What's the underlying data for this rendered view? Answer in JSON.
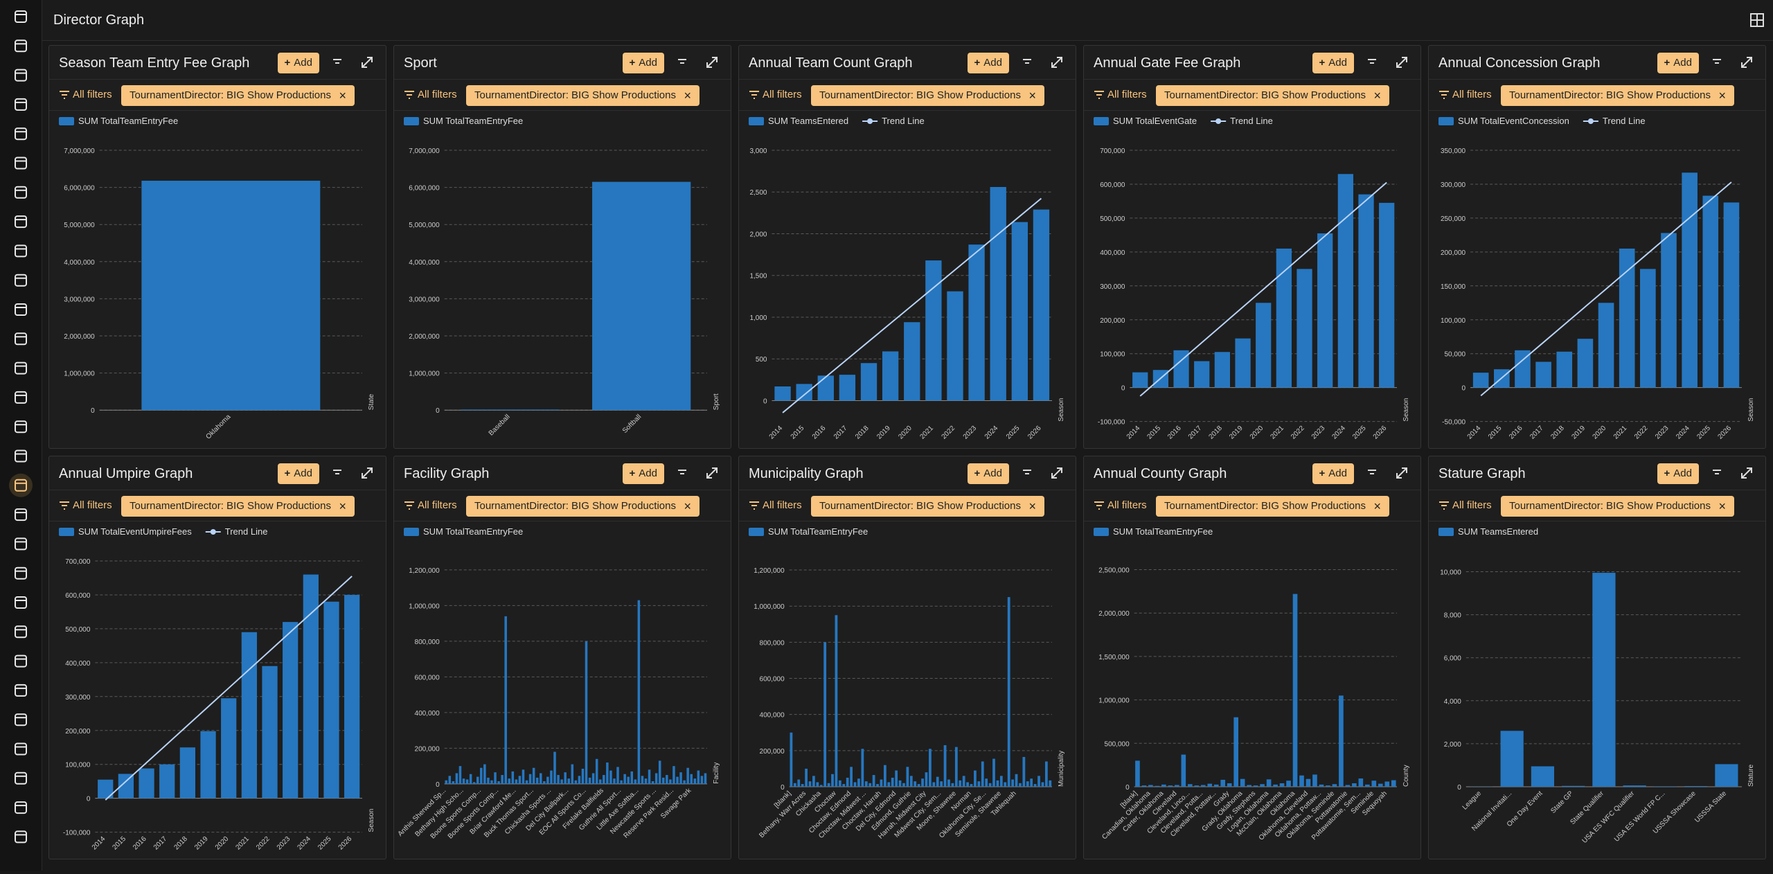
{
  "header": {
    "title": "Director Graph"
  },
  "ui": {
    "add": "Add",
    "all_filters": "All filters",
    "filter_chip": "TournamentDirector: BIG Show Productions"
  },
  "chart_data": [
    {
      "type": "bar",
      "title": "Season Team Entry Fee Graph",
      "x_label": "State",
      "categories": [
        "Oklahoma"
      ],
      "series": [
        {
          "name": "SUM TotalTeamEntryFee",
          "color": "#2677c0",
          "values": [
            6180000
          ]
        }
      ],
      "ylim": [
        0,
        7000000
      ],
      "yticks": [
        0,
        {
          "value": 1000000,
          "label": "1,000,000"
        },
        {
          "value": 2000000,
          "label": "2,000,000"
        },
        {
          "value": 3000000,
          "label": "3,000,000"
        },
        {
          "value": 4000000,
          "label": "4,000,000"
        },
        {
          "value": 5000000,
          "label": "5,000,000"
        },
        {
          "value": 6000000,
          "label": "6,000,000"
        },
        {
          "value": 7000000,
          "label": "7,000,000"
        }
      ],
      "grid": true
    },
    {
      "type": "bar",
      "title": "Sport",
      "x_label": "Sport",
      "categories": [
        "Baseball",
        "Softball"
      ],
      "series": [
        {
          "name": "SUM TotalTeamEntryFee",
          "color": "#2677c0",
          "values": [
            15000,
            6150000
          ]
        }
      ],
      "ylim": [
        0,
        7000000
      ],
      "yticks": [
        0,
        {
          "value": 1000000,
          "label": "1,000,000"
        },
        {
          "value": 2000000,
          "label": "2,000,000"
        },
        {
          "value": 3000000,
          "label": "3,000,000"
        },
        {
          "value": 4000000,
          "label": "4,000,000"
        },
        {
          "value": 5000000,
          "label": "5,000,000"
        },
        {
          "value": 6000000,
          "label": "6,000,000"
        },
        {
          "value": 7000000,
          "label": "7,000,000"
        }
      ],
      "grid": true
    },
    {
      "type": "bar",
      "title": "Annual Team Count Graph",
      "x_label": "Season",
      "categories": [
        "2014",
        "2015",
        "2016",
        "2017",
        "2018",
        "2019",
        "2020",
        "2021",
        "2022",
        "2023",
        "2024",
        "2025",
        "2026"
      ],
      "series": [
        {
          "name": "SUM TeamsEntered",
          "color": "#2677c0",
          "values": [
            170,
            200,
            300,
            310,
            450,
            590,
            940,
            1680,
            1310,
            1870,
            2560,
            2140,
            2290
          ]
        },
        {
          "name": "Trend Line",
          "type": "line",
          "color": "#b9d3f7",
          "values": [
            -145,
            69,
            283,
            497,
            711,
            925,
            1139,
            1353,
            1567,
            1781,
            1995,
            2209,
            2423
          ]
        }
      ],
      "ylim": [
        -250,
        3000
      ],
      "yticks": [
        0,
        500,
        {
          "value": 1000,
          "label": "1,000"
        },
        {
          "value": 1500,
          "label": "1,500"
        },
        {
          "value": 2000,
          "label": "2,000"
        },
        {
          "value": 2500,
          "label": "2,500"
        },
        {
          "value": 3000,
          "label": "3,000"
        }
      ],
      "grid": true
    },
    {
      "type": "bar",
      "title": "Annual Gate Fee Graph",
      "x_label": "Season",
      "categories": [
        "2014",
        "2015",
        "2016",
        "2017",
        "2018",
        "2019",
        "2020",
        "2021",
        "2022",
        "2023",
        "2024",
        "2025",
        "2026"
      ],
      "series": [
        {
          "name": "SUM TotalEventGate",
          "color": "#2677c0",
          "values": [
            45000,
            52000,
            110000,
            78000,
            105000,
            145000,
            250000,
            410000,
            350000,
            455000,
            630000,
            570000,
            545000
          ]
        },
        {
          "name": "Trend Line",
          "type": "line",
          "color": "#b9d3f7",
          "values": [
            -25000,
            27500,
            80000,
            132500,
            185000,
            237500,
            290000,
            342500,
            395000,
            447500,
            500000,
            552500,
            605000
          ]
        }
      ],
      "ylim": [
        -100000,
        700000
      ],
      "yticks": [
        {
          "value": -100000,
          "label": "-100,000"
        },
        0,
        {
          "value": 100000,
          "label": "100,000"
        },
        {
          "value": 200000,
          "label": "200,000"
        },
        {
          "value": 300000,
          "label": "300,000"
        },
        {
          "value": 400000,
          "label": "400,000"
        },
        {
          "value": 500000,
          "label": "500,000"
        },
        {
          "value": 600000,
          "label": "600,000"
        },
        {
          "value": 700000,
          "label": "700,000"
        }
      ],
      "grid": true
    },
    {
      "type": "bar",
      "title": "Annual Concession Graph",
      "x_label": "Season",
      "categories": [
        "2014",
        "2015",
        "2016",
        "2017",
        "2018",
        "2019",
        "2020",
        "2021",
        "2022",
        "2023",
        "2024",
        "2025",
        "2026"
      ],
      "series": [
        {
          "name": "SUM TotalEventConcession",
          "color": "#2677c0",
          "values": [
            22000,
            27000,
            55000,
            38000,
            53000,
            72000,
            125000,
            205000,
            175000,
            228000,
            317000,
            283000,
            273000
          ]
        },
        {
          "name": "Trend Line",
          "type": "line",
          "color": "#b9d3f7",
          "values": [
            -12000,
            14250,
            40500,
            66750,
            93000,
            119250,
            145500,
            171750,
            198000,
            224250,
            250500,
            276750,
            303000
          ]
        }
      ],
      "ylim": [
        -50000,
        350000
      ],
      "yticks": [
        {
          "value": -50000,
          "label": "-50,000"
        },
        0,
        {
          "value": 50000,
          "label": "50,000"
        },
        {
          "value": 100000,
          "label": "100,000"
        },
        {
          "value": 150000,
          "label": "150,000"
        },
        {
          "value": 200000,
          "label": "200,000"
        },
        {
          "value": 250000,
          "label": "250,000"
        },
        {
          "value": 300000,
          "label": "300,000"
        },
        {
          "value": 350000,
          "label": "350,000"
        }
      ],
      "grid": true
    },
    {
      "type": "bar",
      "title": "Annual Umpire Graph",
      "x_label": "Season",
      "categories": [
        "2014",
        "2015",
        "2016",
        "2017",
        "2018",
        "2019",
        "2020",
        "2021",
        "2022",
        "2023",
        "2024",
        "2025",
        "2026"
      ],
      "series": [
        {
          "name": "SUM TotalEventUmpireFees",
          "color": "#2677c0",
          "values": [
            55000,
            72000,
            88000,
            100000,
            150000,
            198000,
            295000,
            490000,
            390000,
            520000,
            660000,
            580000,
            600000
          ]
        },
        {
          "name": "Trend Line",
          "type": "line",
          "color": "#b9d3f7",
          "values": [
            -5000,
            50000,
            105000,
            160000,
            215000,
            270000,
            325000,
            380000,
            435000,
            490000,
            545000,
            600000,
            655000
          ]
        }
      ],
      "ylim": [
        -100000,
        700000
      ],
      "yticks": [
        {
          "value": -100000,
          "label": "-100,000"
        },
        0,
        {
          "value": 100000,
          "label": "100,000"
        },
        {
          "value": 200000,
          "label": "200,000"
        },
        {
          "value": 300000,
          "label": "300,000"
        },
        {
          "value": 400000,
          "label": "400,000"
        },
        {
          "value": 500000,
          "label": "500,000"
        },
        {
          "value": 600000,
          "label": "600,000"
        },
        {
          "value": 700000,
          "label": "700,000"
        }
      ],
      "grid": true
    },
    {
      "type": "bar",
      "title": "Facility Graph",
      "x_label": "Facility",
      "categories": [
        "Anthis Sherwod Sp...",
        null,
        null,
        null,
        null,
        "Bethany High Scho...",
        null,
        null,
        null,
        null,
        "Boone Sports Comp...",
        null,
        null,
        null,
        null,
        "Boone Sports Comp...",
        null,
        null,
        null,
        null,
        "Briar Crawford Me...",
        null,
        null,
        null,
        null,
        "Buck Thomas Sport...",
        null,
        null,
        null,
        null,
        "Chickasha Sports ...",
        null,
        null,
        null,
        null,
        "Del City Ballpark...",
        null,
        null,
        null,
        null,
        "EOC All Sports Co...",
        null,
        null,
        null,
        null,
        "Firelake Ballfields",
        null,
        null,
        null,
        null,
        "Guthrie All Sport...",
        null,
        null,
        null,
        null,
        "Little Axe Softba...",
        null,
        null,
        null,
        null,
        "Newcastle Sports ...",
        null,
        null,
        null,
        null,
        "Reserve Park Resid...",
        null,
        null,
        null,
        null,
        "Savage Park",
        null,
        null,
        null,
        null
      ],
      "series": [
        {
          "name": "SUM TotalTeamEntryFee",
          "color": "#2677c0",
          "values": [
            20000,
            45000,
            15000,
            60000,
            100000,
            30000,
            25000,
            55000,
            10000,
            40000,
            90000,
            110000,
            35000,
            20000,
            65000,
            15000,
            50000,
            940000,
            30000,
            70000,
            25000,
            45000,
            80000,
            20000,
            55000,
            90000,
            35000,
            60000,
            15000,
            40000,
            75000,
            180000,
            50000,
            25000,
            65000,
            30000,
            110000,
            20000,
            45000,
            85000,
            800000,
            35000,
            60000,
            140000,
            25000,
            50000,
            120000,
            75000,
            30000,
            95000,
            20000,
            55000,
            40000,
            70000,
            25000,
            1030000,
            45000,
            30000,
            80000,
            15000,
            60000,
            130000,
            35000,
            50000,
            25000,
            100000,
            40000,
            65000,
            20000,
            90000,
            55000,
            30000,
            75000,
            45000,
            60000
          ]
        }
      ],
      "ylim": [
        0,
        1250000
      ],
      "yticks": [
        0,
        {
          "value": 200000,
          "label": "200,000"
        },
        {
          "value": 400000,
          "label": "400,000"
        },
        {
          "value": 600000,
          "label": "600,000"
        },
        {
          "value": 800000,
          "label": "800,000"
        },
        {
          "value": 1000000,
          "label": "1,000,000"
        },
        {
          "value": 1200000,
          "label": "1,200,000"
        }
      ],
      "grid": true
    },
    {
      "type": "bar",
      "title": "Municipality Graph",
      "x_label": "Municipality",
      "categories": [
        "[blank]",
        null,
        null,
        null,
        "Bethany, Warr Acres",
        null,
        null,
        null,
        "Chickasha",
        null,
        null,
        null,
        "Choctaw",
        null,
        null,
        null,
        "Choctaw, Edmond",
        null,
        null,
        null,
        "Choctaw, Midwest ...",
        null,
        null,
        null,
        "Choctaw, Harrah",
        null,
        null,
        null,
        "Del City, Edmond",
        null,
        null,
        null,
        "Edmond, Guthrie",
        null,
        null,
        null,
        "Harrah, Midwest City",
        null,
        null,
        null,
        "Midwest City, Sem...",
        null,
        null,
        null,
        "Moore, Shawnee",
        null,
        null,
        null,
        "Norman",
        null,
        null,
        null,
        "Oklahoma City, Se...",
        null,
        null,
        null,
        "Seminole, Shawnee",
        null,
        null,
        null,
        "Tahlequah",
        null,
        null,
        null,
        null,
        null,
        null,
        null,
        null,
        null
      ],
      "series": [
        {
          "name": "SUM TotalTeamEntryFee",
          "color": "#2677c0",
          "values": [
            300000,
            20000,
            40000,
            15000,
            100000,
            30000,
            60000,
            25000,
            10000,
            800000,
            20000,
            70000,
            950000,
            35000,
            15000,
            50000,
            110000,
            25000,
            45000,
            210000,
            30000,
            20000,
            65000,
            15000,
            40000,
            120000,
            25000,
            50000,
            90000,
            35000,
            20000,
            110000,
            60000,
            30000,
            15000,
            45000,
            80000,
            210000,
            25000,
            55000,
            30000,
            230000,
            40000,
            20000,
            220000,
            35000,
            60000,
            25000,
            15000,
            90000,
            30000,
            140000,
            45000,
            20000,
            155000,
            35000,
            60000,
            25000,
            1050000,
            40000,
            70000,
            20000,
            165000,
            30000,
            45000,
            15000,
            60000,
            25000,
            140000,
            35000
          ]
        }
      ],
      "ylim": [
        0,
        1250000
      ],
      "yticks": [
        0,
        {
          "value": 200000,
          "label": "200,000"
        },
        {
          "value": 400000,
          "label": "400,000"
        },
        {
          "value": 600000,
          "label": "600,000"
        },
        {
          "value": 800000,
          "label": "800,000"
        },
        {
          "value": 1000000,
          "label": "1,000,000"
        },
        {
          "value": 1200000,
          "label": "1,200,000"
        }
      ],
      "grid": true
    },
    {
      "type": "bar",
      "title": "Annual County Graph",
      "x_label": "County",
      "categories": [
        "[blank]",
        null,
        "Canadian, Oklahoma",
        null,
        "Carter, Oklahoma",
        null,
        "Cleveland",
        null,
        "Cleveland, Linco...",
        null,
        "Cleveland, Potta...",
        null,
        "Cleveland, Pottaw...",
        null,
        "Grady",
        null,
        "Grady, Oklahoma",
        null,
        "Grady, Stephens",
        null,
        "Logan, Oklahoma",
        null,
        "McClain, Oklahoma",
        null,
        "Oklahoma",
        null,
        "Oklahoma, Cleveland",
        null,
        "Oklahoma, Pottaw...",
        null,
        "Oklahoma, Seminole",
        null,
        "Pottawatomie",
        null,
        "Pottawatomie, Sem...",
        null,
        "Seminole",
        null,
        "Sequoyah",
        null
      ],
      "series": [
        {
          "name": "SUM TotalTeamEntryFee",
          "color": "#2677c0",
          "values": [
            300000,
            15000,
            20000,
            10000,
            25000,
            15000,
            20000,
            370000,
            30000,
            15000,
            20000,
            35000,
            25000,
            80000,
            40000,
            800000,
            90000,
            20000,
            15000,
            30000,
            85000,
            25000,
            40000,
            70000,
            2220000,
            130000,
            90000,
            140000,
            25000,
            15000,
            30000,
            1050000,
            20000,
            40000,
            95000,
            25000,
            70000,
            35000,
            60000,
            75000
          ]
        }
      ],
      "ylim": [
        0,
        2600000
      ],
      "yticks": [
        0,
        {
          "value": 500000,
          "label": "500,000"
        },
        {
          "value": 1000000,
          "label": "1,000,000"
        },
        {
          "value": 1500000,
          "label": "1,500,000"
        },
        {
          "value": 2000000,
          "label": "2,000,000"
        },
        {
          "value": 2500000,
          "label": "2,500,000"
        }
      ],
      "grid": true
    },
    {
      "type": "bar",
      "title": "Stature Graph",
      "x_label": "Stature",
      "categories": [
        "League",
        "National Invitati...",
        "One Day Event",
        "State GP",
        "State Qualifier",
        "USA ES WFC Qualifier",
        "USA ES World FP C...",
        "USSSA Showcase",
        "USSSA State"
      ],
      "series": [
        {
          "name": "SUM TeamsEntered",
          "color": "#2677c0",
          "values": [
            10,
            2600,
            950,
            40,
            9950,
            60,
            20,
            30,
            1050
          ]
        }
      ],
      "ylim": [
        0,
        10500
      ],
      "yticks": [
        0,
        {
          "value": 2000,
          "label": "2,000"
        },
        {
          "value": 4000,
          "label": "4,000"
        },
        {
          "value": 6000,
          "label": "6,000"
        },
        {
          "value": 8000,
          "label": "8,000"
        },
        {
          "value": 10000,
          "label": "10,000"
        }
      ],
      "grid": true
    }
  ]
}
